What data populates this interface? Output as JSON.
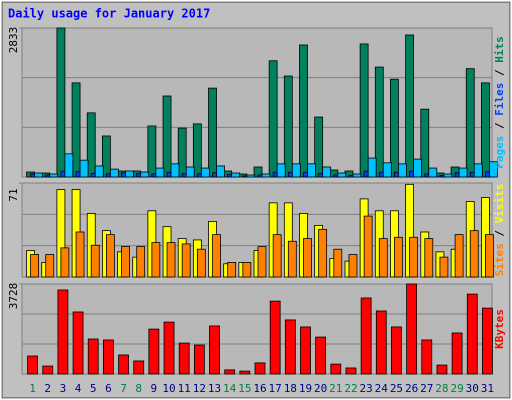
{
  "title": "Daily usage for January 2017",
  "categories": [
    "1",
    "2",
    "3",
    "4",
    "5",
    "6",
    "7",
    "8",
    "9",
    "10",
    "11",
    "12",
    "13",
    "14",
    "15",
    "16",
    "17",
    "18",
    "19",
    "20",
    "21",
    "22",
    "23",
    "24",
    "25",
    "26",
    "27",
    "28",
    "29",
    "30",
    "31"
  ],
  "category_colors": [
    "#008040",
    "#000080",
    "#000080",
    "#000080",
    "#000080",
    "#000080",
    "#008040",
    "#008040",
    "#000080",
    "#000080",
    "#000080",
    "#000080",
    "#000080",
    "#008040",
    "#008040",
    "#000080",
    "#000080",
    "#000080",
    "#000080",
    "#000080",
    "#008040",
    "#008040",
    "#000080",
    "#000080",
    "#000080",
    "#000080",
    "#000080",
    "#008040",
    "#008040",
    "#000080",
    "#000080"
  ],
  "legend_separator": " / ",
  "chart_data": [
    {
      "type": "bar",
      "ylim": [
        0,
        2833
      ],
      "yticks": [
        2833
      ],
      "grid": true,
      "series": [
        {
          "name": "Pages",
          "color": "#00c0ff",
          "values": [
            76,
            57,
            440,
            320,
            210,
            150,
            114,
            95,
            170,
            250,
            190,
            170,
            210,
            76,
            38,
            57,
            250,
            250,
            250,
            190,
            76,
            57,
            360,
            270,
            250,
            340,
            170,
            57,
            170,
            250,
            290
          ]
        },
        {
          "name": "Files",
          "color": "#0040ff",
          "values": [
            60,
            40,
            110,
            100,
            70,
            60,
            80,
            70,
            60,
            90,
            70,
            60,
            80,
            50,
            20,
            40,
            90,
            90,
            90,
            70,
            40,
            30,
            110,
            90,
            90,
            110,
            60,
            30,
            80,
            90,
            100
          ]
        },
        {
          "name": "Hits",
          "color": "#00805c",
          "values": [
            95,
            76,
            2833,
            1790,
            1220,
            780,
            114,
            114,
            970,
            1540,
            930,
            1010,
            1690,
            114,
            57,
            190,
            2210,
            1920,
            2510,
            1140,
            133,
            114,
            2530,
            2090,
            1860,
            2700,
            1290,
            76,
            190,
            2060,
            1790
          ]
        }
      ]
    },
    {
      "type": "bar",
      "ylim": [
        0,
        71
      ],
      "yticks": [
        71
      ],
      "grid": true,
      "series": [
        {
          "name": "Sites",
          "color": "#ff8000",
          "values": [
            17,
            17,
            22,
            34,
            24,
            32,
            23,
            23,
            26,
            26,
            25,
            21,
            32,
            11,
            11,
            23,
            32,
            27,
            29,
            36,
            21,
            17,
            46,
            29,
            30,
            30,
            29,
            15,
            32,
            35,
            32
          ]
        },
        {
          "name": "Visits",
          "color": "#ffff00",
          "values": [
            20,
            11,
            66,
            66,
            48,
            35,
            19,
            15,
            50,
            38,
            29,
            28,
            42,
            10,
            11,
            20,
            56,
            56,
            48,
            39,
            14,
            12,
            59,
            50,
            50,
            70,
            34,
            19,
            21,
            57,
            60
          ]
        }
      ]
    },
    {
      "type": "bar",
      "ylim": [
        0,
        3728
      ],
      "yticks": [
        3728
      ],
      "grid": true,
      "series": [
        {
          "name": "KBytes",
          "color": "#ff0000",
          "values": [
            745,
            330,
            3480,
            2570,
            1450,
            1410,
            790,
            540,
            1860,
            2150,
            1280,
            1200,
            1990,
            170,
            120,
            460,
            3020,
            2240,
            1950,
            1530,
            410,
            250,
            3150,
            2610,
            1950,
            3728,
            1410,
            370,
            1700,
            3310,
            2730
          ]
        }
      ]
    }
  ]
}
